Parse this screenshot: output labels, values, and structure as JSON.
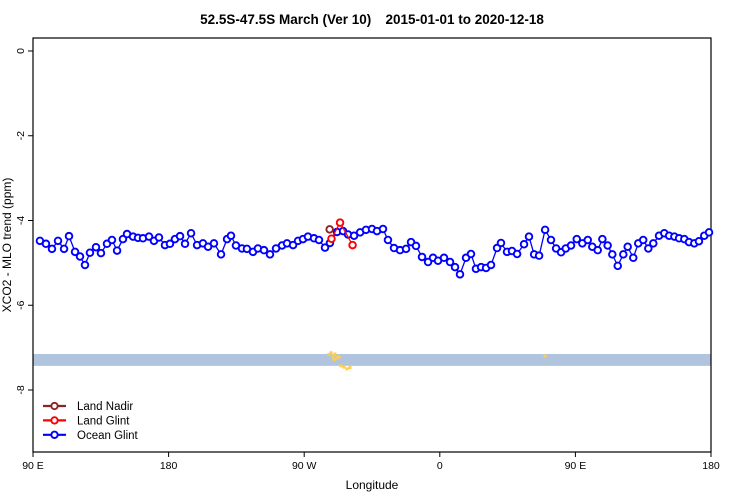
{
  "chart_data": {
    "type": "line",
    "title": "52.5S-47.5S March (Ver 10)   2015-01-01 to 2020-12-18",
    "xlabel": "Longitude",
    "ylabel": "XCO2 - MLO trend (ppm)",
    "x_axis": {
      "min": 0,
      "max": 450,
      "unit": "degrees eastward from 90 E",
      "ticks": [
        {
          "value": 0,
          "label": "90 E"
        },
        {
          "value": 90,
          "label": "180"
        },
        {
          "value": 180,
          "label": "90 W"
        },
        {
          "value": 270,
          "label": "0"
        },
        {
          "value": 360,
          "label": "90 E"
        },
        {
          "value": 450,
          "label": "180"
        }
      ]
    },
    "y_axis": {
      "min": -9.46,
      "max": 0.31,
      "ticks": [
        {
          "value": 0,
          "label": "0"
        },
        {
          "value": -2,
          "label": "-2"
        },
        {
          "value": -4,
          "label": "-4"
        },
        {
          "value": -6,
          "label": "-6"
        },
        {
          "value": -8,
          "label": "-8"
        }
      ]
    },
    "band": {
      "color": "#B0C4DE",
      "ppm_top": -7.15,
      "ppm_bottom": -7.43
    },
    "speckles": {
      "color": "#FFCE4F",
      "points": [
        [
          196.4,
          -7.16
        ],
        [
          197.8,
          -7.12
        ],
        [
          199.1,
          -7.2
        ],
        [
          200.4,
          -7.15
        ],
        [
          201.8,
          -7.24
        ],
        [
          199.8,
          -7.28
        ],
        [
          203.1,
          -7.22
        ],
        [
          204.4,
          -7.43
        ],
        [
          206.4,
          -7.46
        ],
        [
          208.4,
          -7.5
        ],
        [
          210.4,
          -7.47
        ],
        [
          339.9,
          -7.2
        ]
      ]
    },
    "legend": {
      "position": "bottom-left",
      "entries": [
        "Land Nadir",
        "Land Glint",
        "Ocean Glint"
      ]
    },
    "series": [
      {
        "name": "Land Nadir",
        "color": "#8B2323",
        "points": [
          [
            196.9,
            -4.21
          ]
        ]
      },
      {
        "name": "Land Glint",
        "color": "#FF0000",
        "points": [
          [
            198.1,
            -4.43
          ],
          [
            203.8,
            -4.05
          ],
          [
            212.1,
            -4.58
          ]
        ]
      },
      {
        "name": "Ocean Glint",
        "color": "#0000FF",
        "points": [
          [
            4.6,
            -4.48
          ],
          [
            8.6,
            -4.55
          ],
          [
            12.6,
            -4.67
          ],
          [
            16.6,
            -4.48
          ],
          [
            20.6,
            -4.67
          ],
          [
            23.9,
            -4.37
          ],
          [
            27.9,
            -4.74
          ],
          [
            31.2,
            -4.85
          ],
          [
            34.5,
            -5.05
          ],
          [
            37.8,
            -4.76
          ],
          [
            41.8,
            -4.63
          ],
          [
            45.1,
            -4.77
          ],
          [
            49.1,
            -4.55
          ],
          [
            52.4,
            -4.46
          ],
          [
            55.8,
            -4.71
          ],
          [
            59.7,
            -4.44
          ],
          [
            62.4,
            -4.32
          ],
          [
            66.4,
            -4.38
          ],
          [
            69.7,
            -4.41
          ],
          [
            73.0,
            -4.42
          ],
          [
            77.0,
            -4.38
          ],
          [
            80.3,
            -4.48
          ],
          [
            83.6,
            -4.4
          ],
          [
            87.6,
            -4.58
          ],
          [
            90.9,
            -4.55
          ],
          [
            94.2,
            -4.44
          ],
          [
            97.6,
            -4.37
          ],
          [
            100.9,
            -4.55
          ],
          [
            104.9,
            -4.3
          ],
          [
            108.9,
            -4.58
          ],
          [
            112.8,
            -4.54
          ],
          [
            116.2,
            -4.62
          ],
          [
            120.1,
            -4.54
          ],
          [
            124.8,
            -4.8
          ],
          [
            128.8,
            -4.44
          ],
          [
            131.4,
            -4.36
          ],
          [
            134.7,
            -4.59
          ],
          [
            138.7,
            -4.66
          ],
          [
            142.0,
            -4.67
          ],
          [
            146.0,
            -4.74
          ],
          [
            149.3,
            -4.66
          ],
          [
            153.3,
            -4.7
          ],
          [
            157.3,
            -4.8
          ],
          [
            161.3,
            -4.66
          ],
          [
            165.3,
            -4.59
          ],
          [
            168.6,
            -4.54
          ],
          [
            172.6,
            -4.58
          ],
          [
            175.9,
            -4.48
          ],
          [
            179.2,
            -4.44
          ],
          [
            182.5,
            -4.38
          ],
          [
            186.5,
            -4.42
          ],
          [
            189.8,
            -4.46
          ],
          [
            193.8,
            -4.64
          ],
          [
            197.1,
            -4.53
          ],
          [
            201.8,
            -4.27
          ],
          [
            205.8,
            -4.25
          ],
          [
            209.1,
            -4.33
          ],
          [
            213.1,
            -4.36
          ],
          [
            217.1,
            -4.28
          ],
          [
            221.0,
            -4.22
          ],
          [
            225.0,
            -4.2
          ],
          [
            228.3,
            -4.25
          ],
          [
            232.3,
            -4.2
          ],
          [
            235.6,
            -4.46
          ],
          [
            239.6,
            -4.65
          ],
          [
            243.6,
            -4.7
          ],
          [
            247.6,
            -4.67
          ],
          [
            250.9,
            -4.51
          ],
          [
            254.2,
            -4.6
          ],
          [
            258.2,
            -4.86
          ],
          [
            262.2,
            -4.98
          ],
          [
            265.5,
            -4.88
          ],
          [
            268.8,
            -4.95
          ],
          [
            272.8,
            -4.88
          ],
          [
            276.8,
            -4.98
          ],
          [
            280.1,
            -5.1
          ],
          [
            283.4,
            -5.27
          ],
          [
            287.4,
            -4.88
          ],
          [
            290.7,
            -4.79
          ],
          [
            294.0,
            -5.14
          ],
          [
            297.4,
            -5.1
          ],
          [
            300.7,
            -5.12
          ],
          [
            304.0,
            -5.05
          ],
          [
            308.0,
            -4.65
          ],
          [
            310.6,
            -4.53
          ],
          [
            314.6,
            -4.74
          ],
          [
            317.9,
            -4.72
          ],
          [
            321.3,
            -4.79
          ],
          [
            325.9,
            -4.56
          ],
          [
            329.2,
            -4.38
          ],
          [
            332.6,
            -4.8
          ],
          [
            335.9,
            -4.83
          ],
          [
            339.9,
            -4.22
          ],
          [
            343.8,
            -4.46
          ],
          [
            347.2,
            -4.66
          ],
          [
            350.5,
            -4.75
          ],
          [
            353.6,
            -4.66
          ],
          [
            357.1,
            -4.59
          ],
          [
            360.9,
            -4.44
          ],
          [
            364.6,
            -4.54
          ],
          [
            368.2,
            -4.46
          ],
          [
            371.2,
            -4.62
          ],
          [
            374.8,
            -4.7
          ],
          [
            377.9,
            -4.44
          ],
          [
            381.4,
            -4.59
          ],
          [
            384.5,
            -4.8
          ],
          [
            388.1,
            -5.07
          ],
          [
            391.8,
            -4.8
          ],
          [
            394.7,
            -4.62
          ],
          [
            398.4,
            -4.88
          ],
          [
            401.7,
            -4.54
          ],
          [
            405.0,
            -4.46
          ],
          [
            408.4,
            -4.66
          ],
          [
            411.7,
            -4.54
          ],
          [
            415.5,
            -4.36
          ],
          [
            419.0,
            -4.3
          ],
          [
            422.2,
            -4.36
          ],
          [
            425.7,
            -4.38
          ],
          [
            428.8,
            -4.42
          ],
          [
            432.3,
            -4.44
          ],
          [
            435.4,
            -4.51
          ],
          [
            438.9,
            -4.54
          ],
          [
            442.0,
            -4.49
          ],
          [
            445.5,
            -4.36
          ],
          [
            448.7,
            -4.28
          ]
        ]
      }
    ]
  }
}
